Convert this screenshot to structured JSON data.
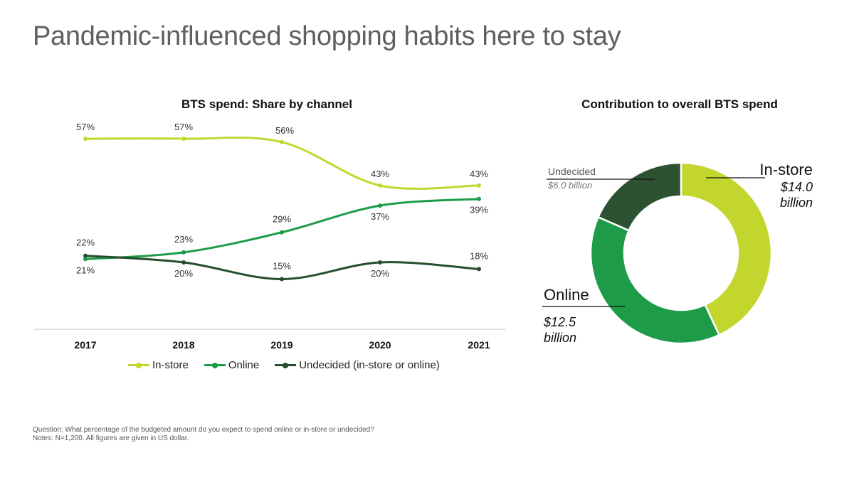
{
  "header": {
    "title": "Pandemic-influenced shopping habits here to stay"
  },
  "chart_data": [
    {
      "type": "line",
      "title": "BTS spend: Share by channel",
      "categories": [
        "2017",
        "2018",
        "2019",
        "2020",
        "2021"
      ],
      "ylim": [
        0,
        60
      ],
      "grid": false,
      "legend_position": "bottom",
      "series": [
        {
          "name": "In-store",
          "values": [
            57,
            57,
            56,
            43,
            43
          ],
          "labels": [
            "57%",
            "57%",
            "56%",
            "43%",
            "43%"
          ],
          "color": "#c3d62e"
        },
        {
          "name": "Online",
          "values": [
            21,
            23,
            29,
            37,
            39
          ],
          "labels": [
            "21%",
            "23%",
            "29%",
            "37%",
            "39%"
          ],
          "color": "#1e9b48"
        },
        {
          "name": "Undecided (in-store or online)",
          "values": [
            22,
            20,
            15,
            20,
            18
          ],
          "labels": [
            "22%",
            "20%",
            "15%",
            "20%",
            "18%"
          ],
          "color": "#264d2c"
        }
      ]
    },
    {
      "type": "pie",
      "title": "Contribution to overall BTS spend",
      "unit": "billion USD",
      "slices": [
        {
          "name": "In-store",
          "value": 14.0,
          "label": "$14.0 billion",
          "value_line1": "$14.0",
          "value_line2": "billion",
          "color": "#c3d62e"
        },
        {
          "name": "Online",
          "value": 12.5,
          "label": "$12.5 billion",
          "value_line1": "$12.5",
          "value_line2": "billion",
          "color": "#1e9b48"
        },
        {
          "name": "Undecided",
          "value": 6.0,
          "label": "$6.0 billion",
          "color": "#2c5232"
        }
      ]
    }
  ],
  "notes": {
    "question": "Question: What percentage of the budgeted amount do you expect to spend online or in-store or undecided?",
    "notes": "Notes: N=1,200. All figures are given in US dollar."
  }
}
